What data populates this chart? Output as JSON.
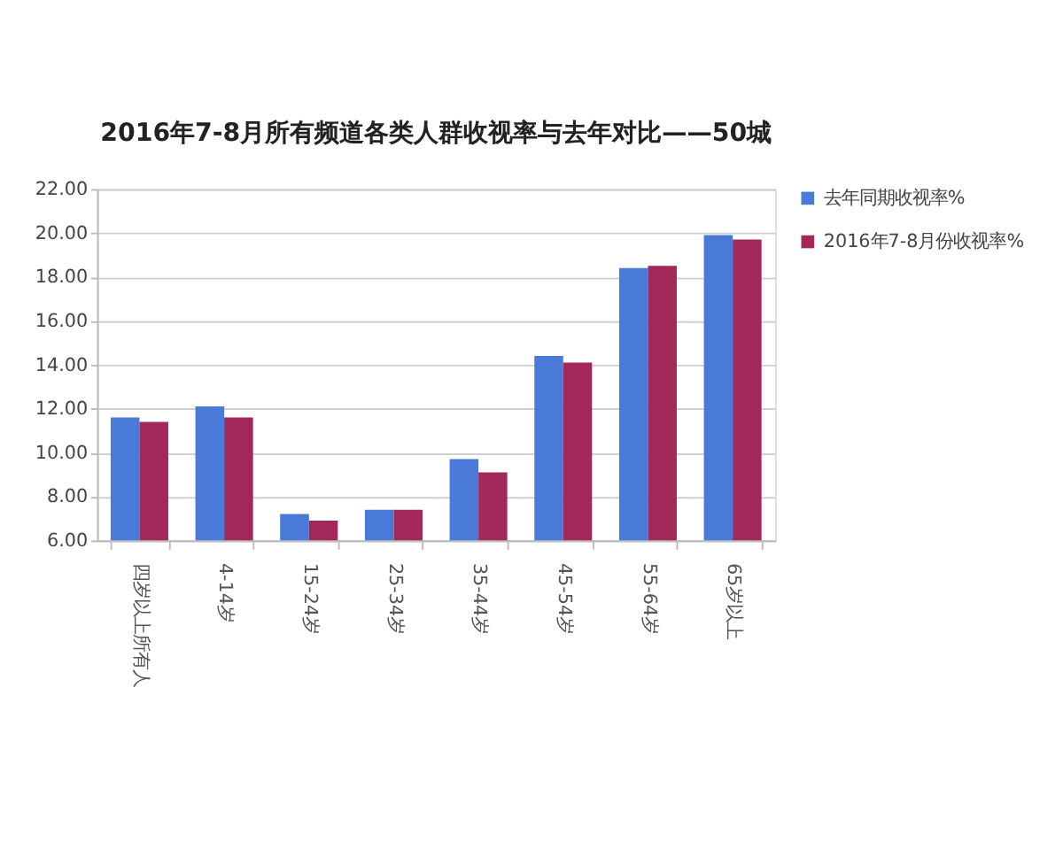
{
  "chart_data": {
    "type": "bar",
    "title": "2016年7-8月所有频道各类人群收视率与去年对比——50城",
    "categories": [
      "四岁以上所有人",
      "4-14岁",
      "15-24岁",
      "25-34岁",
      "35-44岁",
      "45-54岁",
      "55-64岁",
      "65岁以上"
    ],
    "series": [
      {
        "name": "去年同期收视率%",
        "color": "#4a7ad8",
        "values": [
          11.6,
          12.1,
          7.2,
          7.4,
          9.7,
          14.4,
          18.4,
          19.9
        ]
      },
      {
        "name": "2016年7-8月份收视率%",
        "color": "#a3285a",
        "values": [
          11.4,
          11.6,
          6.9,
          7.4,
          9.1,
          14.1,
          18.5,
          19.7
        ]
      }
    ],
    "ylim": [
      6,
      22
    ],
    "yticks": [
      {
        "value": 6,
        "label": "6.00"
      },
      {
        "value": 8,
        "label": "8.00"
      },
      {
        "value": 10,
        "label": "10.00"
      },
      {
        "value": 12,
        "label": "12.00"
      },
      {
        "value": 14,
        "label": "14.00"
      },
      {
        "value": 16,
        "label": "16.00"
      },
      {
        "value": 18,
        "label": "18.00"
      },
      {
        "value": 20,
        "label": "20.00"
      },
      {
        "value": 22,
        "label": "22.00"
      }
    ],
    "grid": "y",
    "legend": "right"
  }
}
